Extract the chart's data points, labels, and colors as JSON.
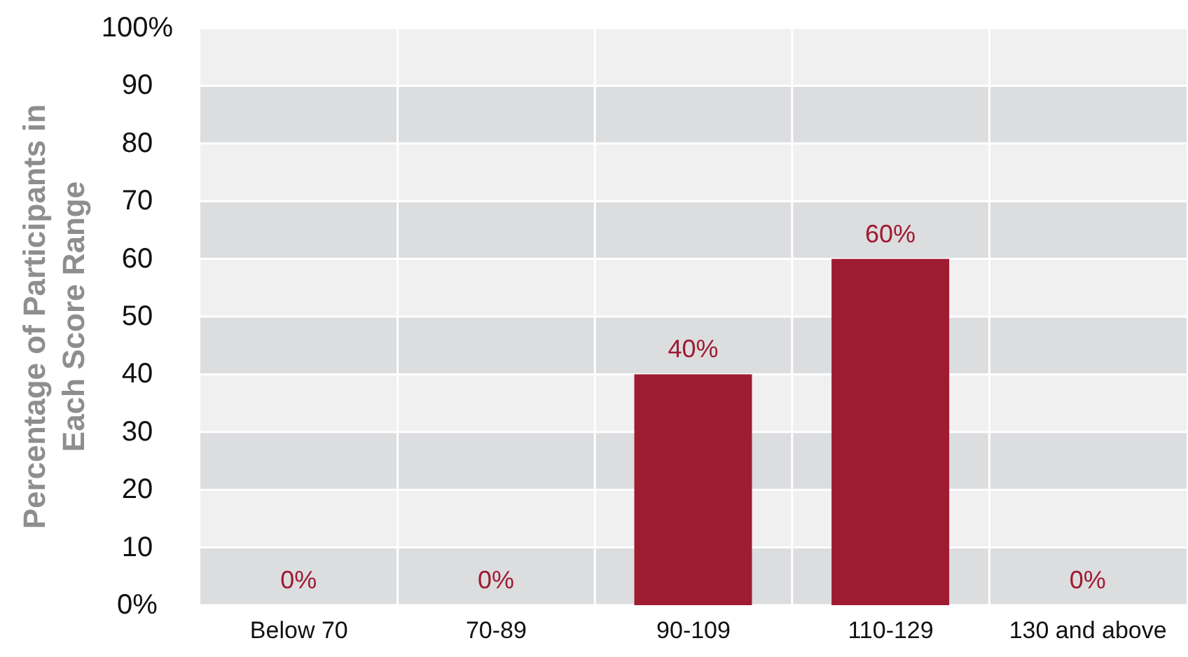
{
  "chart_data": {
    "type": "bar",
    "ylabel": "Percentage of Participants in Each Score Range",
    "categories": [
      "Below 70",
      "70-89",
      "90-109",
      "110-129",
      "130 and above"
    ],
    "values": [
      0,
      0,
      40,
      60,
      0
    ],
    "color": "#9e1b32",
    "value_labels": [
      "0%",
      "0%",
      "40%",
      "60%",
      "0%"
    ],
    "ylim": [
      0,
      100
    ],
    "yticks": [
      {
        "value": 0,
        "label": "0%"
      },
      10,
      20,
      30,
      40,
      50,
      60,
      70,
      80,
      90,
      {
        "value": 100,
        "label": "100%"
      }
    ],
    "grid": true
  }
}
